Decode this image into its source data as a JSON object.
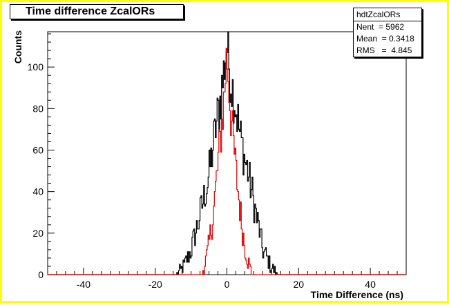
{
  "window": {
    "border_color": "#ffff00",
    "background": "#ffffff"
  },
  "title_box": {
    "text": "Time difference ZcalORs"
  },
  "stats_box": {
    "title": "hdtZcalORs",
    "rows": [
      {
        "label": "Nent",
        "value": "5962"
      },
      {
        "label": "Mean",
        "value": "0.3418"
      },
      {
        "label": "RMS",
        "value": "4.845"
      }
    ]
  },
  "chart_data": {
    "type": "area",
    "title": "Time difference ZcalORs",
    "xlabel": "Time Difference (ns)",
    "ylabel": "Counts",
    "xlim": [
      -50,
      50
    ],
    "ylim": [
      0,
      117
    ],
    "xticks": [
      -40,
      -20,
      0,
      20,
      40
    ],
    "yticks": [
      0,
      20,
      40,
      60,
      80,
      100
    ],
    "grid": false,
    "bins": 400,
    "series": [
      {
        "color": "#000000",
        "shape": "gaussian",
        "mean": 0.3418,
        "rms": 4.845,
        "peak": 112,
        "points": [
          [
            -14,
            0
          ],
          [
            -12,
            4
          ],
          [
            -10,
            12
          ],
          [
            -8,
            25
          ],
          [
            -6,
            40
          ],
          [
            -5,
            48
          ],
          [
            -4,
            60
          ],
          [
            -3,
            72
          ],
          [
            -2,
            82
          ],
          [
            -1,
            95
          ],
          [
            0,
            112
          ],
          [
            1,
            95
          ],
          [
            2,
            86
          ],
          [
            3,
            75
          ],
          [
            4,
            64
          ],
          [
            5,
            56
          ],
          [
            6,
            48
          ],
          [
            7,
            40
          ],
          [
            8,
            30
          ],
          [
            9,
            22
          ],
          [
            10,
            12
          ],
          [
            12,
            5
          ],
          [
            14,
            0
          ]
        ]
      },
      {
        "color": "#e00000",
        "shape": "gaussian",
        "points": [
          [
            -7,
            0
          ],
          [
            -6,
            6
          ],
          [
            -5,
            14
          ],
          [
            -4,
            26
          ],
          [
            -3,
            44
          ],
          [
            -2,
            62
          ],
          [
            -1,
            80
          ],
          [
            0,
            107
          ],
          [
            1,
            80
          ],
          [
            2,
            60
          ],
          [
            3,
            42
          ],
          [
            4,
            26
          ],
          [
            5,
            14
          ],
          [
            6,
            6
          ],
          [
            7,
            0
          ]
        ]
      }
    ],
    "stats": {
      "entries": 5962,
      "mean": 0.3418,
      "rms": 4.845
    }
  }
}
